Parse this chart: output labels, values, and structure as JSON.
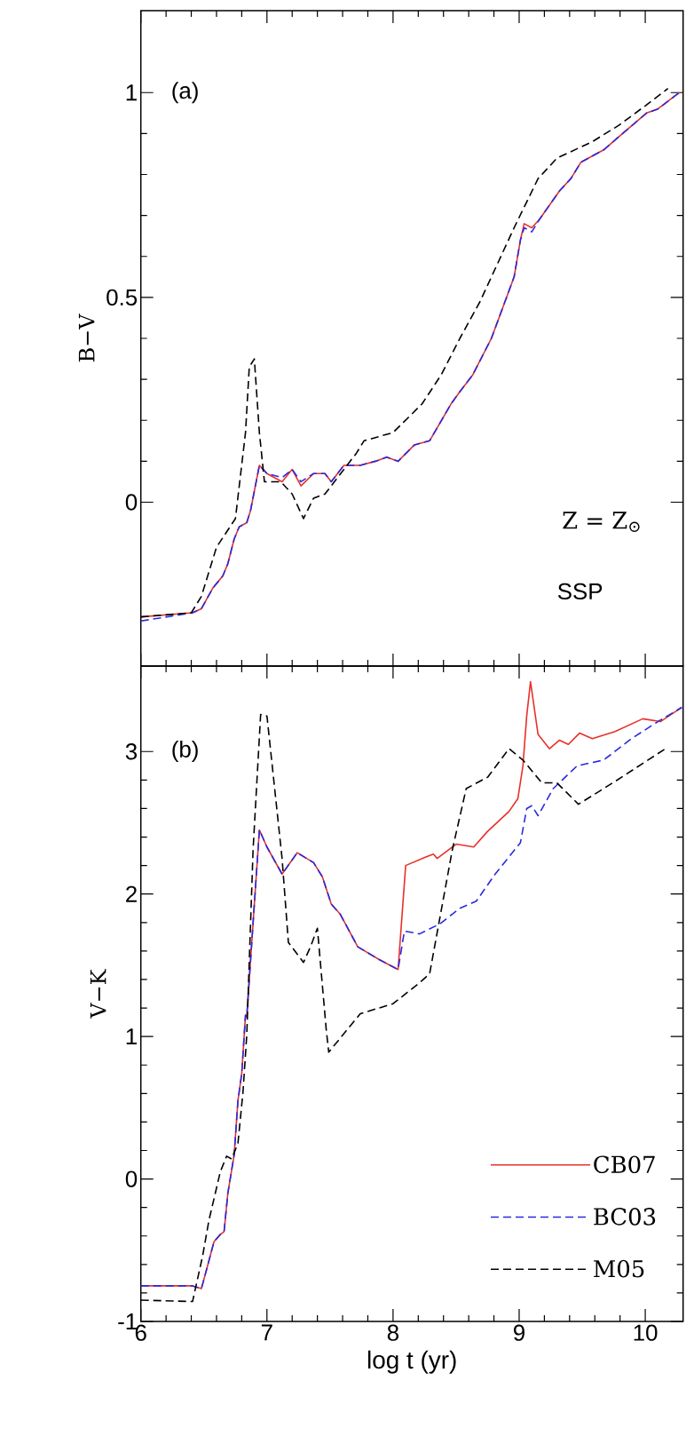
{
  "chart_data": [
    {
      "type": "line",
      "ylabel": "B−V",
      "xlim": [
        6,
        10.3
      ],
      "xticks": [
        6,
        7,
        8,
        9,
        10
      ],
      "ylim": [
        -0.4,
        1.2
      ],
      "yticks": [
        0,
        0.5,
        1
      ],
      "tick_labels": "y",
      "marker": "none",
      "annotations": [
        "(a)",
        "Z = Z$_{⊙}$",
        "SSP"
      ],
      "series": [
        {
          "color": "#e8302a",
          "line_style": "solid",
          "x": [
            6,
            6.41,
            6.48,
            6.57,
            6.65,
            6.69,
            6.74,
            6.78,
            6.84,
            6.87,
            6.94,
            7.0,
            7.12,
            7.2,
            7.27,
            7.37,
            7.46,
            7.51,
            7.61,
            7.74,
            7.86,
            7.95,
            8.04,
            8.17,
            8.29,
            8.46,
            8.53,
            8.63,
            8.78,
            8.84,
            8.96,
            9.01,
            9.04,
            9.1,
            9.16,
            9.32,
            9.41,
            9.49,
            9.55,
            9.67,
            9.82,
            10.01,
            10.1,
            10.27
          ],
          "values": [
            -0.28,
            -0.27,
            -0.26,
            -0.21,
            -0.18,
            -0.15,
            -0.09,
            -0.06,
            -0.05,
            -0.02,
            0.09,
            0.07,
            0.05,
            0.08,
            0.04,
            0.07,
            0.07,
            0.05,
            0.09,
            0.09,
            0.1,
            0.11,
            0.1,
            0.14,
            0.15,
            0.24,
            0.27,
            0.31,
            0.4,
            0.45,
            0.55,
            0.64,
            0.68,
            0.67,
            0.69,
            0.76,
            0.79,
            0.83,
            0.84,
            0.86,
            0.9,
            0.95,
            0.96,
            1.0
          ]
        },
        {
          "color": "#2a2ae0",
          "line_style": "dashed",
          "x": [
            6,
            6.41,
            6.48,
            6.57,
            6.65,
            6.69,
            6.74,
            6.78,
            6.84,
            6.87,
            6.94,
            7.0,
            7.12,
            7.2,
            7.27,
            7.37,
            7.46,
            7.51,
            7.61,
            7.74,
            7.86,
            7.95,
            8.04,
            8.17,
            8.29,
            8.46,
            8.53,
            8.63,
            8.78,
            8.84,
            8.96,
            9.01,
            9.04,
            9.1,
            9.16,
            9.32,
            9.41,
            9.49,
            9.55,
            9.67,
            9.82,
            10.01,
            10.1,
            10.27
          ],
          "values": [
            -0.29,
            -0.27,
            -0.26,
            -0.21,
            -0.18,
            -0.15,
            -0.09,
            -0.06,
            -0.05,
            -0.02,
            0.09,
            0.07,
            0.06,
            0.08,
            0.05,
            0.07,
            0.07,
            0.05,
            0.09,
            0.09,
            0.1,
            0.11,
            0.1,
            0.14,
            0.15,
            0.24,
            0.27,
            0.31,
            0.4,
            0.45,
            0.55,
            0.64,
            0.67,
            0.66,
            0.69,
            0.76,
            0.79,
            0.83,
            0.84,
            0.86,
            0.9,
            0.95,
            0.96,
            1.0
          ]
        },
        {
          "color": "#000000",
          "line_style": "dashed",
          "x": [
            6,
            6.4,
            6.48,
            6.6,
            6.75,
            6.83,
            6.86,
            6.9,
            6.94,
            6.98,
            7.11,
            7.2,
            7.29,
            7.37,
            7.46,
            7.71,
            7.77,
            8.0,
            8.23,
            8.38,
            8.53,
            8.69,
            8.96,
            9.15,
            9.3,
            9.58,
            9.79,
            10.01,
            10.18
          ],
          "values": [
            -0.28,
            -0.27,
            -0.23,
            -0.11,
            -0.04,
            0.17,
            0.33,
            0.35,
            0.17,
            0.05,
            0.05,
            0.02,
            -0.04,
            0.01,
            0.02,
            0.12,
            0.15,
            0.17,
            0.24,
            0.31,
            0.4,
            0.49,
            0.67,
            0.79,
            0.84,
            0.88,
            0.92,
            0.97,
            1.01
          ]
        }
      ]
    },
    {
      "type": "line",
      "xlabel": "log t (yr)",
      "ylabel": "V−K",
      "xlim": [
        6,
        10.3
      ],
      "xticks": [
        6,
        7,
        8,
        9,
        10
      ],
      "ylim": [
        -1,
        3.6
      ],
      "yticks": [
        -1,
        0,
        1,
        2,
        3
      ],
      "marker": "none",
      "legend": "bottom right",
      "annotations": [
        "(b)"
      ],
      "series": [
        {
          "name": "CB07",
          "color": "#e8302a",
          "line_style": "solid",
          "x": [
            6,
            6.41,
            6.48,
            6.52,
            6.58,
            6.63,
            6.66,
            6.69,
            6.74,
            6.77,
            6.8,
            6.83,
            6.84,
            6.94,
            7.0,
            7.12,
            7.24,
            7.37,
            7.44,
            7.51,
            7.58,
            7.72,
            7.89,
            8.04,
            8.1,
            8.26,
            8.32,
            8.35,
            8.5,
            8.64,
            8.75,
            8.92,
            8.99,
            9.03,
            9.06,
            9.09,
            9.15,
            9.24,
            9.32,
            9.39,
            9.48,
            9.58,
            9.76,
            9.98,
            10.12,
            10.29
          ],
          "values": [
            -0.75,
            -0.75,
            -0.77,
            -0.64,
            -0.44,
            -0.39,
            -0.37,
            -0.1,
            0.17,
            0.55,
            0.74,
            1.15,
            1.14,
            2.45,
            2.33,
            2.14,
            2.29,
            2.22,
            2.12,
            1.93,
            1.86,
            1.63,
            1.54,
            1.47,
            2.2,
            2.26,
            2.28,
            2.25,
            2.35,
            2.33,
            2.44,
            2.58,
            2.67,
            2.9,
            3.25,
            3.49,
            3.12,
            3.02,
            3.08,
            3.05,
            3.13,
            3.09,
            3.14,
            3.23,
            3.21,
            3.31
          ]
        },
        {
          "name": "BC03",
          "color": "#2a2ae0",
          "line_style": "dashed",
          "x": [
            6,
            6.41,
            6.48,
            6.52,
            6.58,
            6.63,
            6.66,
            6.69,
            6.74,
            6.77,
            6.8,
            6.83,
            6.84,
            6.94,
            7.0,
            7.12,
            7.24,
            7.37,
            7.44,
            7.51,
            7.58,
            7.72,
            7.89,
            8.04,
            8.09,
            8.21,
            8.37,
            8.53,
            8.66,
            8.81,
            9.01,
            9.06,
            9.1,
            9.15,
            9.27,
            9.46,
            9.67,
            9.89,
            10.1,
            10.29
          ],
          "values": [
            -0.75,
            -0.75,
            -0.77,
            -0.64,
            -0.44,
            -0.39,
            -0.37,
            -0.1,
            0.17,
            0.55,
            0.74,
            1.15,
            1.14,
            2.45,
            2.33,
            2.14,
            2.29,
            2.22,
            2.12,
            1.93,
            1.86,
            1.63,
            1.54,
            1.47,
            1.74,
            1.72,
            1.79,
            1.9,
            1.95,
            2.14,
            2.36,
            2.6,
            2.62,
            2.55,
            2.74,
            2.9,
            2.94,
            3.09,
            3.21,
            3.31
          ]
        },
        {
          "name": "M05",
          "color": "#000000",
          "line_style": "dashed",
          "x": [
            6,
            6.41,
            6.49,
            6.54,
            6.63,
            6.68,
            6.72,
            6.77,
            6.81,
            6.84,
            6.89,
            6.95,
            7.0,
            7.12,
            7.17,
            7.29,
            7.35,
            7.4,
            7.47,
            7.49,
            7.74,
            8.0,
            8.2,
            8.29,
            8.47,
            8.58,
            8.75,
            8.92,
            9.03,
            9.18,
            9.3,
            9.47,
            9.76,
            10.16
          ],
          "values": [
            -0.85,
            -0.86,
            -0.54,
            -0.29,
            0.05,
            0.16,
            0.14,
            0.25,
            0.61,
            1.01,
            2.31,
            3.26,
            3.25,
            2.25,
            1.66,
            1.52,
            1.64,
            1.76,
            1.05,
            0.89,
            1.16,
            1.23,
            1.37,
            1.44,
            2.31,
            2.74,
            2.82,
            3.02,
            2.94,
            2.78,
            2.78,
            2.63,
            2.79,
            3.02
          ]
        }
      ]
    }
  ]
}
